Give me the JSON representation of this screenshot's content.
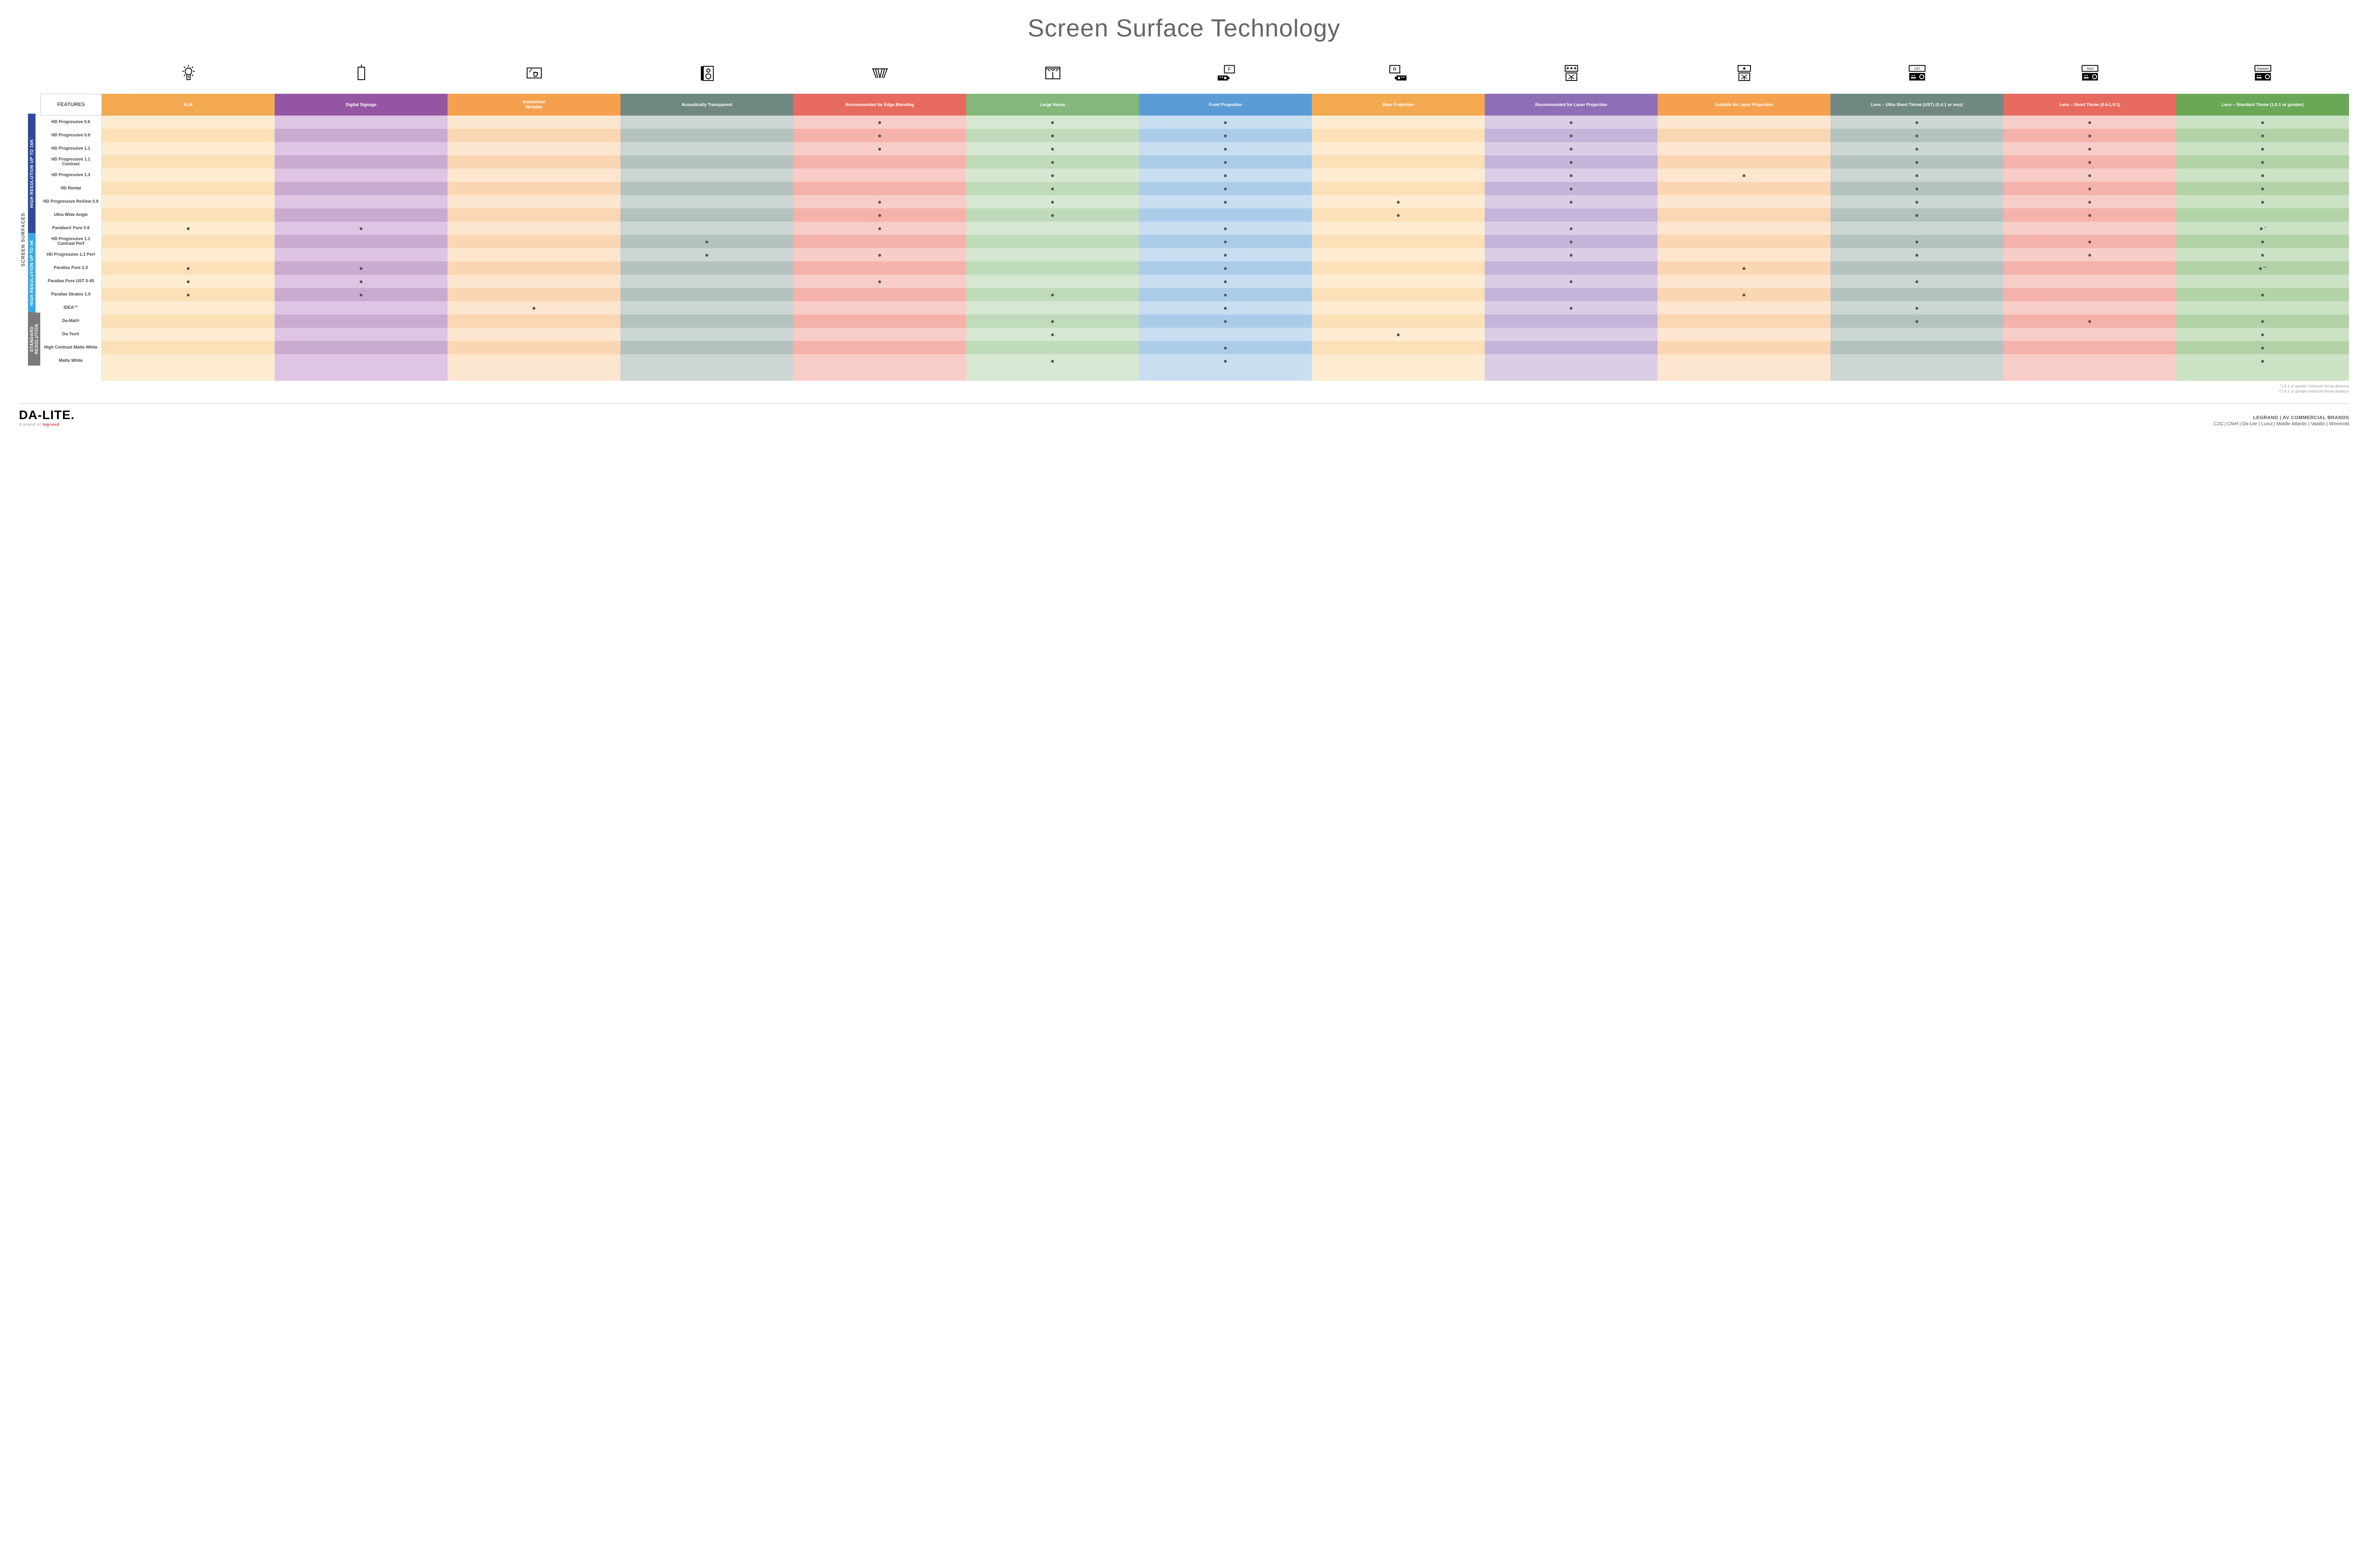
{
  "title": "Screen Surface Technology",
  "colors": {
    "alr": "#f3a94f",
    "alr_l": "#fbe0b8",
    "alr_l2": "#fdecd1",
    "dsig": "#9455a3",
    "dsig_l": "#c9abd2",
    "dsig_l2": "#ddc5e3",
    "int": "#f5a04e",
    "int_l": "#fbd6b2",
    "int_l2": "#fde6cf",
    "ac": "#6f8882",
    "ac_l": "#b4c2bf",
    "ac_l2": "#ccd6d3",
    "eb": "#e76a5e",
    "eb_l": "#f4b2ab",
    "eb_l2": "#f8cdc8",
    "lv": "#84b77a",
    "lv_l": "#c0dbba",
    "lv_l2": "#d6e7d2",
    "fp": "#5a9bd5",
    "fp_l": "#abcce9",
    "fp_l2": "#c9def1",
    "rp": "#f3a94f",
    "rp_l": "#fbe0b8",
    "rp_l2": "#fdecd1",
    "rlp": "#8e6fb5",
    "rlp_l": "#c5b4d9",
    "rlp_l2": "#dacee7",
    "slp": "#f5a04e",
    "slp_l": "#fbd6b2",
    "slp_l2": "#fde6cf",
    "ust": "#6f8882",
    "ust_l": "#b4c2bf",
    "ust_l2": "#ccd6d3",
    "st": "#e76a5e",
    "st_l": "#f4b2ab",
    "st_l2": "#f8cdc8",
    "std": "#6aa858",
    "std_l": "#b2d2a8",
    "std_l2": "#cce2c5",
    "cat16k": "#2e4a9e",
    "cat4k": "#3aa9e0",
    "catstd": "#7a7a7a"
  },
  "features_label": "FEATURES",
  "columns": [
    {
      "key": "alr",
      "label": "ALR"
    },
    {
      "key": "dsig",
      "label": "Digital Signage"
    },
    {
      "key": "int",
      "label": "Interactive/\nWritable"
    },
    {
      "key": "ac",
      "label": "Acoustically Transparent"
    },
    {
      "key": "eb",
      "label": "Recommended for Edge Blending"
    },
    {
      "key": "lv",
      "label": "Large Venue"
    },
    {
      "key": "fp",
      "label": "Front Projection"
    },
    {
      "key": "rp",
      "label": "Rear Projection"
    },
    {
      "key": "rlp",
      "label": "Recommended for Laser Projection"
    },
    {
      "key": "slp",
      "label": "Suitable for Laser Projection"
    },
    {
      "key": "ust",
      "label": "Lens – Ultra Short Throw (UST) (0.4:1 or less)"
    },
    {
      "key": "st",
      "label": "Lens – Short Throw (0.4-1.0:1)"
    },
    {
      "key": "std",
      "label": "Lens – Standard Throw (1.0:1 or greater)"
    }
  ],
  "outer_label": "SCREEN SURFACES",
  "categories": [
    {
      "key": "cat16k",
      "label": "HIGH RESOLUTION UP TO 16K",
      "rows": [
        {
          "label": "HD Progressive 0.6",
          "dots": [
            "",
            "",
            "",
            "",
            "●",
            "●",
            "●",
            "",
            "●",
            "",
            "●",
            "●",
            "●"
          ]
        },
        {
          "label": "HD Progressive 0.9",
          "dots": [
            "",
            "",
            "",
            "",
            "●",
            "●",
            "●",
            "",
            "●",
            "",
            "●",
            "●",
            "●"
          ]
        },
        {
          "label": "HD Progressive 1.1",
          "dots": [
            "",
            "",
            "",
            "",
            "●",
            "●",
            "●",
            "",
            "●",
            "",
            "●",
            "●",
            "●"
          ]
        },
        {
          "label": "HD Progressive 1.1 Contrast",
          "dots": [
            "",
            "",
            "",
            "",
            "",
            "●",
            "●",
            "",
            "●",
            "",
            "●",
            "●",
            "●"
          ]
        },
        {
          "label": "HD Progressive 1.3",
          "dots": [
            "",
            "",
            "",
            "",
            "",
            "●",
            "●",
            "",
            "●",
            "●",
            "●",
            "●",
            "●"
          ]
        },
        {
          "label": "HD Rental",
          "dots": [
            "",
            "",
            "",
            "",
            "",
            "●",
            "●",
            "",
            "●",
            "",
            "●",
            "●",
            "●"
          ]
        },
        {
          "label": "HD Progressive ReView 0.9",
          "dots": [
            "",
            "",
            "",
            "",
            "●",
            "●",
            "●",
            "●",
            "●",
            "",
            "●",
            "●",
            "●"
          ]
        },
        {
          "label": "Ultra Wide Angle",
          "dots": [
            "",
            "",
            "",
            "",
            "●",
            "●",
            "",
            "●",
            "",
            "",
            "●",
            "●",
            ""
          ]
        },
        {
          "label": "Parallax® Pure 0.8",
          "dots": [
            "●",
            "●",
            "",
            "",
            "●",
            "",
            "●",
            "",
            "●",
            "",
            "",
            "",
            "●*"
          ]
        }
      ]
    },
    {
      "key": "cat4k",
      "label": "HIGH RESOLUTION UP TO 4K",
      "rows": [
        {
          "label": "HD Progressive 1.1 Contrast Perf",
          "dots": [
            "",
            "",
            "",
            "●",
            "",
            "",
            "●",
            "",
            "●",
            "",
            "●",
            "●",
            "●"
          ]
        },
        {
          "label": "HD Progressive 1.1 Perf",
          "dots": [
            "",
            "",
            "",
            "●",
            "●",
            "",
            "●",
            "",
            "●",
            "",
            "●",
            "●",
            "●"
          ]
        },
        {
          "label": "Parallax Pure 2.3",
          "dots": [
            "●",
            "●",
            "",
            "",
            "",
            "",
            "●",
            "",
            "",
            "●",
            "",
            "",
            "●**"
          ]
        },
        {
          "label": "Parallax Pure UST 0.45",
          "dots": [
            "●",
            "●",
            "",
            "",
            "●",
            "",
            "●",
            "",
            "●",
            "",
            "●",
            "",
            ""
          ]
        },
        {
          "label": "Parallax Stratos 1.0",
          "dots": [
            "●",
            "●",
            "",
            "",
            "",
            "●",
            "●",
            "",
            "",
            "●",
            "",
            "",
            "●"
          ]
        },
        {
          "label": "IDEA™",
          "dots": [
            "",
            "",
            "●",
            "",
            "",
            "",
            "●",
            "",
            "●",
            "",
            "●",
            "",
            ""
          ]
        }
      ]
    },
    {
      "key": "catstd",
      "label": "STANDARD RESOLUTION",
      "rows": [
        {
          "label": "Da-Mat®",
          "dots": [
            "",
            "",
            "",
            "",
            "",
            "●",
            "●",
            "",
            "",
            "",
            "●",
            "●",
            "●"
          ]
        },
        {
          "label": "Da-Tex®",
          "dots": [
            "",
            "",
            "",
            "",
            "",
            "●",
            "",
            "●",
            "",
            "",
            "",
            "",
            "●"
          ]
        },
        {
          "label": "High Contrast Matte White",
          "dots": [
            "",
            "",
            "",
            "",
            "",
            "",
            "●",
            "",
            "",
            "",
            "",
            "",
            "●"
          ]
        },
        {
          "label": "Matte White",
          "dots": [
            "",
            "",
            "",
            "",
            "",
            "●",
            "●",
            "",
            "",
            "",
            "",
            "",
            "●"
          ]
        }
      ]
    }
  ],
  "notes": [
    "*1.5:1 or greater minimum throw distance",
    "**1.8:1 or greater minimum throw distance"
  ],
  "footer": {
    "logo": "DA-LITE.",
    "tag": "A brand of",
    "tagbrand": "legrand",
    "brands_title": "LEGRAND | AV COMMERCIAL BRANDS",
    "brands": "C2G  |  Chief  |  Da-Lite  |  Luxul  |  Middle Atlantic  |  Vaddio  |  Wiremold"
  },
  "icons": {
    "ust_text": "UST",
    "short_text": "Short",
    "std_text": "Standard"
  }
}
